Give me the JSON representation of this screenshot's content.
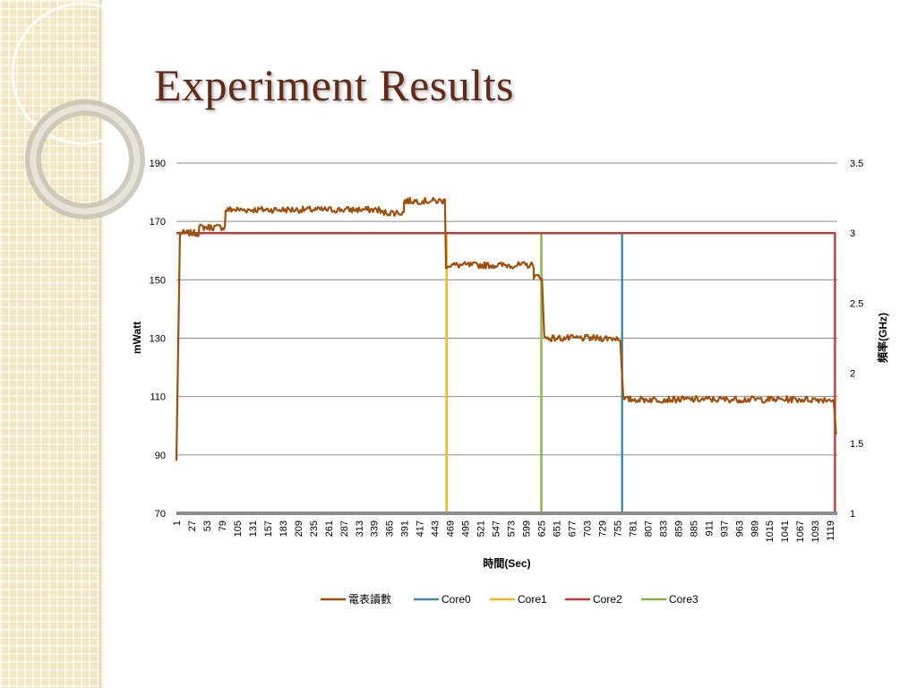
{
  "slide": {
    "title": "Experiment Results"
  },
  "colors": {
    "title": "#632a18",
    "panel": "#f2e7c3",
    "grid": "#8c8c8c",
    "power_series": "#a0500c",
    "core0": "#3f8ba3",
    "core1": "#f2b81a",
    "core2": "#c0393d",
    "core3": "#8ab33f"
  },
  "chart_data": {
    "type": "line",
    "xlabel": "時間(Sec)",
    "ylabel_left": "mWatt",
    "ylabel_right": "頻率(GHz)",
    "ylim_left": [
      70,
      190
    ],
    "yticks_left": [
      70,
      90,
      110,
      130,
      150,
      170,
      190
    ],
    "ylim_right": [
      1,
      3.5
    ],
    "yticks_right": [
      "1",
      "1.5",
      "2",
      "2.5",
      "3",
      "3.5"
    ],
    "xlim": [
      1,
      1131
    ],
    "x_tick_labels": [
      1,
      27,
      53,
      79,
      105,
      131,
      157,
      183,
      209,
      235,
      261,
      287,
      313,
      339,
      365,
      391,
      417,
      443,
      469,
      495,
      521,
      547,
      573,
      599,
      625,
      651,
      677,
      703,
      729,
      755,
      781,
      807,
      833,
      859,
      885,
      911,
      937,
      963,
      989,
      1015,
      1041,
      1067,
      1093,
      1119
    ],
    "grid": "horizontal",
    "legend_position": "bottom",
    "series": [
      {
        "name": "電表讀數",
        "axis": "left",
        "color": "#a0500c",
        "segments": [
          {
            "x": [
              1,
              7
            ],
            "y": [
              88,
              165
            ]
          },
          {
            "x": [
              7,
              40
            ],
            "y": 166
          },
          {
            "x": [
              40,
              85
            ],
            "y": 168
          },
          {
            "x": [
              85,
              95
            ],
            "y": 174
          },
          {
            "x": [
              95,
              350
            ],
            "y": 174
          },
          {
            "x": [
              350,
              390
            ],
            "y": 173
          },
          {
            "x": [
              390,
              460
            ],
            "y": 177
          },
          {
            "x": [
              462,
              612
            ],
            "y": 155
          },
          {
            "x": [
              612,
              627
            ],
            "y": 151
          },
          {
            "x": [
              630,
              760
            ],
            "y": 130
          },
          {
            "x": [
              765,
              1125
            ],
            "y": 109
          },
          {
            "x": [
              1125,
              1129
            ],
            "y": [
              108,
              97
            ]
          }
        ]
      },
      {
        "name": "Core0",
        "axis": "right",
        "color": "#3f8ba3",
        "segments": [
          {
            "x": [
              1,
              763
            ],
            "y": 3.0
          },
          {
            "x": [
              763,
              763
            ],
            "y": [
              3.0,
              1.0
            ]
          }
        ]
      },
      {
        "name": "Core1",
        "axis": "right",
        "color": "#f2b81a",
        "segments": [
          {
            "x": [
              1,
              463
            ],
            "y": 3.0
          },
          {
            "x": [
              463,
              463
            ],
            "y": [
              3.0,
              1.0
            ]
          }
        ]
      },
      {
        "name": "Core2",
        "axis": "right",
        "color": "#c0393d",
        "segments": [
          {
            "x": [
              1,
              1127
            ],
            "y": 3.0
          },
          {
            "x": [
              1127,
              1127
            ],
            "y": [
              3.0,
              1.0
            ]
          }
        ]
      },
      {
        "name": "Core3",
        "axis": "right",
        "color": "#8ab33f",
        "segments": [
          {
            "x": [
              1,
              625
            ],
            "y": 3.0
          },
          {
            "x": [
              625,
              625
            ],
            "y": [
              3.0,
              1.0
            ]
          }
        ]
      }
    ]
  }
}
